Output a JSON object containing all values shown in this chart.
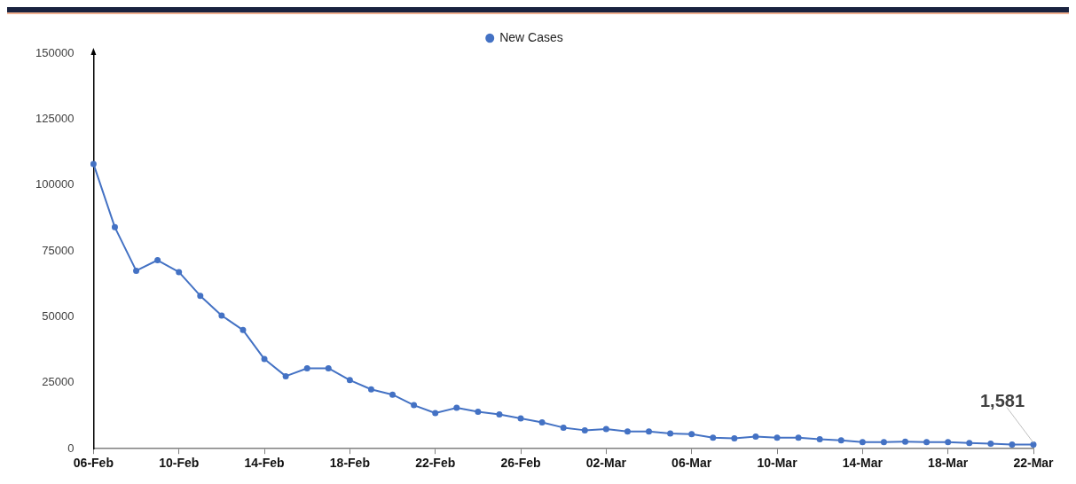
{
  "chart_data": {
    "type": "line",
    "categories": [
      "06-Feb",
      null,
      null,
      null,
      "10-Feb",
      null,
      null,
      null,
      "14-Feb",
      null,
      null,
      null,
      "18-Feb",
      null,
      null,
      null,
      "22-Feb",
      null,
      null,
      null,
      "26-Feb",
      null,
      null,
      null,
      "02-Mar",
      null,
      null,
      null,
      "06-Mar",
      null,
      null,
      null,
      "10-Mar",
      null,
      null,
      null,
      "14-Mar",
      null,
      null,
      null,
      "18-Mar",
      null,
      null,
      null,
      "22-Mar"
    ],
    "series": [
      {
        "name": "New Cases",
        "color": "#4472c4",
        "values": [
          108000,
          84000,
          67500,
          71500,
          67000,
          58000,
          50500,
          45000,
          34000,
          27500,
          30500,
          30500,
          26000,
          22500,
          20500,
          16500,
          13500,
          15500,
          14000,
          13000,
          11500,
          10000,
          8000,
          7000,
          7500,
          6500,
          6500,
          5800,
          5500,
          4200,
          3900,
          4600,
          4200,
          4200,
          3600,
          3200,
          2500,
          2500,
          2700,
          2500,
          2500,
          2200,
          1900,
          1600,
          1581
        ]
      }
    ],
    "ylim": [
      0,
      150000
    ],
    "yticks": [
      0,
      25000,
      50000,
      75000,
      100000,
      125000,
      150000
    ],
    "grid": false,
    "legend": "top",
    "marker": "circle",
    "line_style": "solid",
    "annotations": [
      {
        "text": "1,581",
        "x": "22-Mar",
        "y": 1581
      }
    ]
  }
}
